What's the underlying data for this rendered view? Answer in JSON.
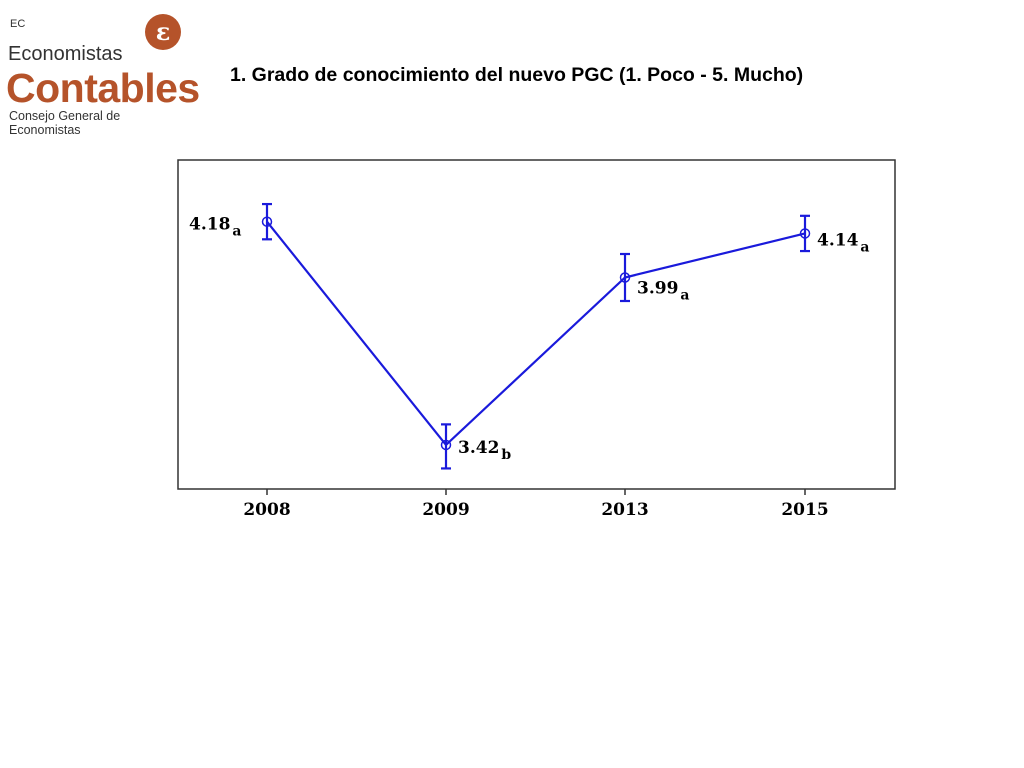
{
  "logo": {
    "ec": "EC",
    "line1": "Economistas",
    "line2": "Contables",
    "line3": "Consejo General de Economistas",
    "mark": "ε",
    "accent": "#b5532a"
  },
  "slide_title": "1. Grado de conocimiento del nuevo PGC (1. Poco - 5. Mucho)",
  "chart_data": {
    "type": "line",
    "title": "",
    "xlabel": "",
    "ylabel": "",
    "categories": [
      "2008",
      "2009",
      "2013",
      "2015"
    ],
    "series": [
      {
        "values": [
          4.18,
          3.42,
          3.99,
          4.14
        ],
        "error_low": [
          4.12,
          3.34,
          3.91,
          4.08
        ],
        "error_high": [
          4.24,
          3.49,
          4.07,
          4.2
        ],
        "labels": [
          "4.18",
          "3.42",
          "3.99",
          "4.14"
        ],
        "groups": [
          "a",
          "b",
          "a",
          "a"
        ],
        "color": "#1a1adb"
      }
    ],
    "ylim": [
      3.27,
      4.39
    ],
    "grid": false,
    "legend": "none"
  }
}
